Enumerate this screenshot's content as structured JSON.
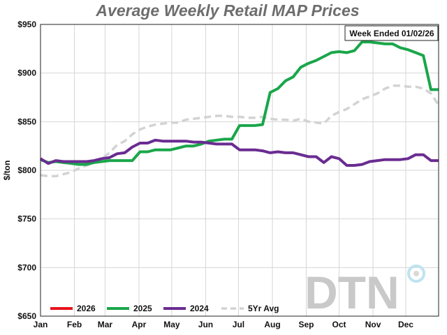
{
  "chart_data": {
    "type": "line",
    "title": "Average Weekly Retail MAP Prices",
    "ylabel": "$/ton",
    "xlabel": "",
    "annotation": "Week Ended 01/02/26",
    "ylim": [
      650,
      950
    ],
    "y_ticks": [
      650,
      700,
      750,
      800,
      850,
      900,
      950
    ],
    "y_tick_labels": [
      "$650",
      "$700",
      "$750",
      "$800",
      "$850",
      "$900",
      "$950"
    ],
    "x_range": [
      0,
      52
    ],
    "x_ticks": [
      0,
      4.43,
      8.43,
      12.86,
      17.14,
      21.57,
      25.86,
      30.29,
      34.71,
      39.0,
      43.43,
      47.71
    ],
    "x_tick_labels": [
      "Jan",
      "Feb",
      "Mar",
      "Apr",
      "May",
      "Jun",
      "Jul",
      "Aug",
      "Sep",
      "Oct",
      "Nov",
      "Dec"
    ],
    "grid": true,
    "legend_position": "bottom",
    "series": [
      {
        "name": "2026",
        "color": "#e8141b",
        "dash": false,
        "x": [],
        "values": []
      },
      {
        "name": "2025",
        "color": "#1aa64a",
        "dash": false,
        "x": [
          0,
          1,
          2,
          3,
          4,
          5,
          6,
          7,
          8,
          9,
          10,
          11,
          12,
          13,
          14,
          15,
          16,
          17,
          18,
          19,
          20,
          21,
          22,
          23,
          24,
          25,
          26,
          27,
          28,
          29,
          30,
          31,
          32,
          33,
          34,
          35,
          36,
          37,
          38,
          39,
          40,
          41,
          42,
          43,
          44,
          45,
          46,
          47,
          48,
          49,
          50,
          51,
          52
        ],
        "values": [
          811,
          808,
          809,
          808,
          807,
          806,
          806,
          808,
          809,
          810,
          810,
          810,
          810,
          819,
          819,
          821,
          821,
          821,
          823,
          825,
          825,
          827,
          830,
          831,
          832,
          832,
          846,
          846,
          846,
          847,
          880,
          884,
          892,
          896,
          906,
          910,
          913,
          917,
          921,
          922,
          921,
          923,
          932,
          932,
          931,
          930,
          930,
          926,
          924,
          921,
          918,
          883,
          883
        ]
      },
      {
        "name": "2024",
        "color": "#6a2c91",
        "dash": false,
        "x": [
          0,
          1,
          2,
          3,
          4,
          5,
          6,
          7,
          8,
          9,
          10,
          11,
          12,
          13,
          14,
          15,
          16,
          17,
          18,
          19,
          20,
          21,
          22,
          23,
          24,
          25,
          26,
          27,
          28,
          29,
          30,
          31,
          32,
          33,
          34,
          35,
          36,
          37,
          38,
          39,
          40,
          41,
          42,
          43,
          44,
          45,
          46,
          47,
          48,
          49,
          50,
          51,
          52
        ],
        "values": [
          812,
          807,
          810,
          809,
          809,
          809,
          809,
          810,
          812,
          813,
          817,
          818,
          824,
          828,
          828,
          831,
          830,
          830,
          830,
          830,
          829,
          829,
          828,
          827,
          827,
          827,
          821,
          821,
          821,
          820,
          818,
          819,
          818,
          818,
          816,
          814,
          814,
          808,
          814,
          812,
          805,
          805,
          806,
          809,
          810,
          811,
          811,
          811,
          812,
          816,
          816,
          810,
          810
        ]
      },
      {
        "name": "5Yr Avg",
        "color": "#d3d3d3",
        "dash": true,
        "x": [
          0,
          1,
          2,
          3,
          4,
          5,
          6,
          7,
          8,
          9,
          10,
          11,
          12,
          13,
          14,
          15,
          16,
          17,
          18,
          19,
          20,
          21,
          22,
          23,
          24,
          25,
          26,
          27,
          28,
          29,
          30,
          31,
          32,
          33,
          34,
          35,
          36,
          37,
          38,
          39,
          40,
          41,
          42,
          43,
          44,
          45,
          46,
          47,
          48,
          49,
          50,
          51,
          52
        ],
        "values": [
          795,
          794,
          794,
          796,
          798,
          802,
          805,
          808,
          812,
          818,
          826,
          830,
          837,
          842,
          845,
          847,
          848,
          849,
          849,
          852,
          853,
          854,
          855,
          856,
          856,
          855,
          855,
          854,
          854,
          855,
          853,
          852,
          852,
          851,
          853,
          850,
          849,
          848,
          856,
          860,
          863,
          868,
          873,
          876,
          879,
          884,
          887,
          887,
          886,
          886,
          884,
          879,
          867
        ]
      }
    ],
    "logo_text": "DTN"
  }
}
